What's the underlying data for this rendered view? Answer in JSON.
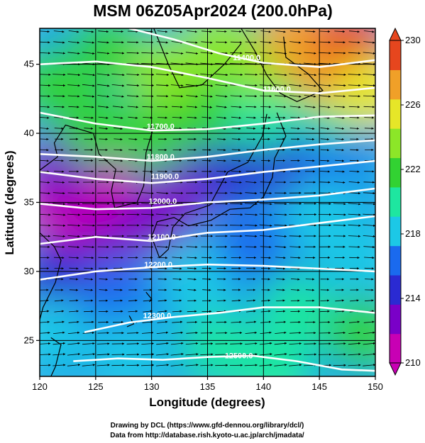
{
  "chart_data": {
    "type": "heatmap",
    "title": "MSM 06Z05Apr2024 (200.0hPa)",
    "xlabel": "Longitude (degrees)",
    "ylabel": "Latitude  (degrees)",
    "xlim": [
      120,
      150
    ],
    "ylim": [
      22.4,
      47.6
    ],
    "x_ticks": [
      120,
      125,
      130,
      135,
      140,
      145,
      150
    ],
    "y_ticks": [
      25,
      30,
      35,
      40,
      45
    ],
    "colorbar": {
      "min": 210,
      "max": 230,
      "ticks": [
        210,
        214,
        218,
        222,
        226,
        230
      ],
      "colors": [
        "#c800b4",
        "#7a00c8",
        "#2a2ad2",
        "#1a6aee",
        "#1cc8e6",
        "#1ee6a0",
        "#32d232",
        "#8ce628",
        "#e6e628",
        "#f0a028",
        "#e6461e"
      ]
    },
    "field_blobs": [
      {
        "lon": 121.0,
        "lat": 35.0,
        "value": 210.5
      },
      {
        "lon": 123.5,
        "lat": 33.5,
        "value": 210.8
      },
      {
        "lon": 126.0,
        "lat": 35.5,
        "value": 211.5
      },
      {
        "lon": 122.0,
        "lat": 37.5,
        "value": 213.0
      },
      {
        "lon": 130.5,
        "lat": 34.0,
        "value": 212.5
      },
      {
        "lon": 133.0,
        "lat": 36.0,
        "value": 213.0
      },
      {
        "lon": 126.0,
        "lat": 31.0,
        "value": 213.5
      },
      {
        "lon": 137.0,
        "lat": 37.5,
        "value": 214.0
      },
      {
        "lon": 142.0,
        "lat": 38.0,
        "value": 215.0
      },
      {
        "lon": 146.0,
        "lat": 39.0,
        "value": 215.5
      },
      {
        "lon": 121.0,
        "lat": 29.5,
        "value": 215.0
      },
      {
        "lon": 127.0,
        "lat": 28.5,
        "value": 217.0
      },
      {
        "lon": 134.0,
        "lat": 29.5,
        "value": 217.5
      },
      {
        "lon": 139.0,
        "lat": 32.0,
        "value": 217.0
      },
      {
        "lon": 145.0,
        "lat": 34.0,
        "value": 217.5
      },
      {
        "lon": 148.5,
        "lat": 31.0,
        "value": 218.5
      },
      {
        "lon": 121.0,
        "lat": 25.5,
        "value": 218.5
      },
      {
        "lon": 128.0,
        "lat": 24.0,
        "value": 219.0
      },
      {
        "lon": 136.0,
        "lat": 24.5,
        "value": 220.0
      },
      {
        "lon": 143.0,
        "lat": 27.0,
        "value": 220.5
      },
      {
        "lon": 149.0,
        "lat": 25.5,
        "value": 221.0
      },
      {
        "lon": 141.0,
        "lat": 23.0,
        "value": 220.0
      },
      {
        "lon": 125.0,
        "lat": 40.5,
        "value": 221.0
      },
      {
        "lon": 130.0,
        "lat": 40.0,
        "value": 221.5
      },
      {
        "lon": 135.0,
        "lat": 41.5,
        "value": 221.5
      },
      {
        "lon": 140.0,
        "lat": 41.5,
        "value": 220.5
      },
      {
        "lon": 146.0,
        "lat": 42.0,
        "value": 220.0
      },
      {
        "lon": 121.0,
        "lat": 43.5,
        "value": 221.5
      },
      {
        "lon": 126.0,
        "lat": 46.0,
        "value": 222.0
      },
      {
        "lon": 131.0,
        "lat": 44.5,
        "value": 223.5
      },
      {
        "lon": 136.0,
        "lat": 46.5,
        "value": 224.5
      },
      {
        "lon": 140.0,
        "lat": 45.0,
        "value": 224.0
      },
      {
        "lon": 143.0,
        "lat": 47.0,
        "value": 226.5
      },
      {
        "lon": 145.5,
        "lat": 44.5,
        "value": 228.0
      },
      {
        "lon": 148.0,
        "lat": 46.5,
        "value": 229.0
      },
      {
        "lon": 149.5,
        "lat": 43.0,
        "value": 226.0
      }
    ],
    "contours": [
      {
        "label": "11400.0",
        "label_lon": 138.5,
        "label_lat": 45.3,
        "points": [
          [
            128,
            47.6
          ],
          [
            132,
            46.8
          ],
          [
            136,
            45.8
          ],
          [
            140,
            45.1
          ],
          [
            145,
            44.8
          ],
          [
            150,
            45.3
          ]
        ]
      },
      {
        "label": "11600.0",
        "label_lon": 141.2,
        "label_lat": 43.0,
        "points": [
          [
            120,
            45.0
          ],
          [
            125,
            45.2
          ],
          [
            130,
            44.8
          ],
          [
            135,
            44.0
          ],
          [
            140,
            43.1
          ],
          [
            145,
            42.9
          ],
          [
            150,
            43.3
          ]
        ]
      },
      {
        "label": "11700.0",
        "label_lon": 130.8,
        "label_lat": 40.3,
        "points": [
          [
            120,
            41.5
          ],
          [
            125,
            40.7
          ],
          [
            130,
            40.2
          ],
          [
            135,
            40.3
          ],
          [
            140,
            40.7
          ],
          [
            145,
            41.2
          ],
          [
            150,
            41.3
          ]
        ]
      },
      {
        "label": "11800.0",
        "label_lon": 130.8,
        "label_lat": 38.1,
        "points": [
          [
            120,
            38.5
          ],
          [
            125,
            38.3
          ],
          [
            130,
            38.0
          ],
          [
            135,
            38.3
          ],
          [
            140,
            38.8
          ],
          [
            145,
            39.2
          ],
          [
            150,
            39.5
          ]
        ]
      },
      {
        "label": "11900.0",
        "label_lon": 131.2,
        "label_lat": 36.7,
        "points": [
          [
            120,
            37.2
          ],
          [
            125,
            36.7
          ],
          [
            130,
            36.4
          ],
          [
            135,
            36.7
          ],
          [
            140,
            37.2
          ],
          [
            145,
            37.6
          ],
          [
            150,
            38.0
          ]
        ]
      },
      {
        "label": "12000.0",
        "label_lon": 131.0,
        "label_lat": 34.9,
        "points": [
          [
            120,
            34.9
          ],
          [
            125,
            34.5
          ],
          [
            130,
            34.6
          ],
          [
            135,
            35.0
          ],
          [
            140,
            35.2
          ],
          [
            145,
            35.5
          ],
          [
            150,
            36.0
          ]
        ]
      },
      {
        "label": "12100.0",
        "label_lon": 130.9,
        "label_lat": 32.3,
        "points": [
          [
            120,
            32.0
          ],
          [
            125,
            32.5
          ],
          [
            130,
            32.2
          ],
          [
            135,
            32.8
          ],
          [
            140,
            33.0
          ],
          [
            145,
            33.5
          ],
          [
            150,
            34.0
          ]
        ]
      },
      {
        "label": "12200.0",
        "label_lon": 130.6,
        "label_lat": 30.3,
        "points": [
          [
            120,
            29.4
          ],
          [
            125,
            30.0
          ],
          [
            130,
            30.3
          ],
          [
            135,
            30.5
          ],
          [
            140,
            30.4
          ],
          [
            145,
            30.2
          ],
          [
            150,
            30.0
          ]
        ]
      },
      {
        "label": "12300.0",
        "label_lon": 130.5,
        "label_lat": 26.6,
        "points": [
          [
            124,
            25.6
          ],
          [
            128,
            26.3
          ],
          [
            132,
            26.7
          ],
          [
            136,
            27.0
          ],
          [
            140,
            27.4
          ],
          [
            145,
            27.4
          ],
          [
            150,
            27.0
          ]
        ]
      },
      {
        "label": "12500.0",
        "label_lon": 137.8,
        "label_lat": 23.7,
        "points": [
          [
            123,
            23.5
          ],
          [
            127,
            23.7
          ],
          [
            131,
            23.6
          ],
          [
            135,
            23.8
          ],
          [
            139,
            23.9
          ],
          [
            143,
            23.5
          ],
          [
            147,
            22.9
          ],
          [
            150,
            22.8
          ]
        ]
      }
    ]
  },
  "credits": {
    "line1": "Drawing by DCL (https://www.gfd-dennou.org/library/dcl/)",
    "line2": "Data from http://database.rish.kyoto-u.ac.jp/arch/jmadata/"
  }
}
